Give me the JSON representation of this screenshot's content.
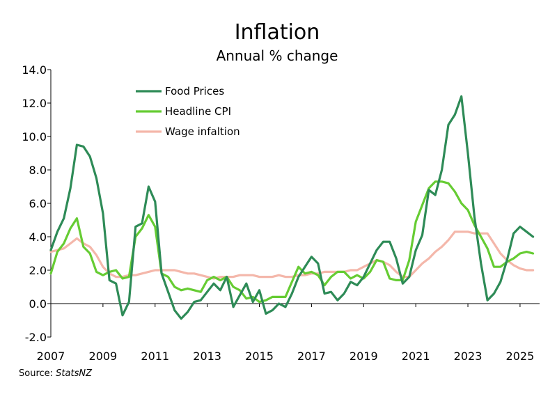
{
  "title": "Inflation",
  "subtitle": "Annual % change",
  "source": {
    "prefix": "Source: ",
    "name": "StatsNZ"
  },
  "colors": {
    "food": "#2e8b57",
    "cpi": "#66cc33",
    "wage": "#f4b7aa",
    "axis": "#000000"
  },
  "chart_data": {
    "type": "line",
    "title": "Inflation",
    "subtitle": "Annual % change",
    "xlabel": "",
    "ylabel": "",
    "xlim": [
      2007.0,
      2025.75
    ],
    "ylim": [
      -2.0,
      14.0
    ],
    "yticks": [
      "-2.0",
      "0.0",
      "2.0",
      "4.0",
      "6.0",
      "8.0",
      "10.0",
      "12.0",
      "14.0"
    ],
    "xticks": [
      "2007",
      "2009",
      "2011",
      "2013",
      "2015",
      "2017",
      "2019",
      "2021",
      "2023",
      "2025"
    ],
    "grid": false,
    "legend_position": "top-left",
    "series": [
      {
        "name": "Food Prices",
        "color": "#2e8b57",
        "points": [
          [
            2007.0,
            3.2
          ],
          [
            2007.25,
            4.3
          ],
          [
            2007.5,
            5.1
          ],
          [
            2007.75,
            6.9
          ],
          [
            2008.0,
            9.5
          ],
          [
            2008.25,
            9.4
          ],
          [
            2008.5,
            8.8
          ],
          [
            2008.75,
            7.5
          ],
          [
            2009.0,
            5.4
          ],
          [
            2009.25,
            1.4
          ],
          [
            2009.5,
            1.2
          ],
          [
            2009.75,
            -0.7
          ],
          [
            2010.0,
            0.1
          ],
          [
            2010.25,
            4.6
          ],
          [
            2010.5,
            4.8
          ],
          [
            2010.75,
            7.0
          ],
          [
            2011.0,
            6.1
          ],
          [
            2011.25,
            1.8
          ],
          [
            2011.5,
            0.7
          ],
          [
            2011.75,
            -0.4
          ],
          [
            2012.0,
            -0.9
          ],
          [
            2012.25,
            -0.5
          ],
          [
            2012.5,
            0.1
          ],
          [
            2012.75,
            0.2
          ],
          [
            2013.0,
            0.7
          ],
          [
            2013.25,
            1.2
          ],
          [
            2013.5,
            0.8
          ],
          [
            2013.75,
            1.6
          ],
          [
            2014.0,
            -0.2
          ],
          [
            2014.25,
            0.5
          ],
          [
            2014.5,
            1.2
          ],
          [
            2014.75,
            0.1
          ],
          [
            2015.0,
            0.8
          ],
          [
            2015.25,
            -0.6
          ],
          [
            2015.5,
            -0.4
          ],
          [
            2015.75,
            0.0
          ],
          [
            2016.0,
            -0.2
          ],
          [
            2016.25,
            0.6
          ],
          [
            2016.5,
            1.6
          ],
          [
            2016.75,
            2.2
          ],
          [
            2017.0,
            2.8
          ],
          [
            2017.25,
            2.4
          ],
          [
            2017.5,
            0.6
          ],
          [
            2017.75,
            0.7
          ],
          [
            2018.0,
            0.2
          ],
          [
            2018.25,
            0.6
          ],
          [
            2018.5,
            1.3
          ],
          [
            2018.75,
            1.1
          ],
          [
            2019.0,
            1.6
          ],
          [
            2019.25,
            2.4
          ],
          [
            2019.5,
            3.2
          ],
          [
            2019.75,
            3.7
          ],
          [
            2020.0,
            3.7
          ],
          [
            2020.25,
            2.7
          ],
          [
            2020.5,
            1.2
          ],
          [
            2020.75,
            1.6
          ],
          [
            2021.0,
            3.2
          ],
          [
            2021.25,
            4.1
          ],
          [
            2021.5,
            6.8
          ],
          [
            2021.75,
            6.5
          ],
          [
            2022.0,
            8.0
          ],
          [
            2022.25,
            10.7
          ],
          [
            2022.5,
            11.3
          ],
          [
            2022.75,
            12.4
          ],
          [
            2023.0,
            9.0
          ],
          [
            2023.25,
            5.2
          ],
          [
            2023.5,
            2.4
          ],
          [
            2023.75,
            0.2
          ],
          [
            2024.0,
            0.6
          ],
          [
            2024.25,
            1.3
          ],
          [
            2024.5,
            2.6
          ],
          [
            2024.75,
            4.2
          ],
          [
            2025.0,
            4.6
          ],
          [
            2025.25,
            4.3
          ],
          [
            2025.5,
            4.0
          ]
        ]
      },
      {
        "name": "Headline CPI",
        "color": "#66cc33",
        "points": [
          [
            2007.0,
            1.8
          ],
          [
            2007.25,
            3.1
          ],
          [
            2007.5,
            3.6
          ],
          [
            2007.75,
            4.5
          ],
          [
            2008.0,
            5.1
          ],
          [
            2008.25,
            3.4
          ],
          [
            2008.5,
            3.0
          ],
          [
            2008.75,
            1.9
          ],
          [
            2009.0,
            1.7
          ],
          [
            2009.25,
            1.9
          ],
          [
            2009.5,
            2.0
          ],
          [
            2009.75,
            1.5
          ],
          [
            2010.0,
            1.6
          ],
          [
            2010.25,
            4.0
          ],
          [
            2010.5,
            4.5
          ],
          [
            2010.75,
            5.3
          ],
          [
            2011.0,
            4.6
          ],
          [
            2011.25,
            1.8
          ],
          [
            2011.5,
            1.6
          ],
          [
            2011.75,
            1.0
          ],
          [
            2012.0,
            0.8
          ],
          [
            2012.25,
            0.9
          ],
          [
            2012.5,
            0.8
          ],
          [
            2012.75,
            0.7
          ],
          [
            2013.0,
            1.4
          ],
          [
            2013.25,
            1.6
          ],
          [
            2013.5,
            1.4
          ],
          [
            2013.75,
            1.6
          ],
          [
            2014.0,
            1.0
          ],
          [
            2014.25,
            0.8
          ],
          [
            2014.5,
            0.3
          ],
          [
            2014.75,
            0.4
          ],
          [
            2015.0,
            0.1
          ],
          [
            2015.25,
            0.2
          ],
          [
            2015.5,
            0.4
          ],
          [
            2015.75,
            0.4
          ],
          [
            2016.0,
            0.4
          ],
          [
            2016.25,
            1.3
          ],
          [
            2016.5,
            2.2
          ],
          [
            2016.75,
            1.8
          ],
          [
            2017.0,
            1.9
          ],
          [
            2017.25,
            1.7
          ],
          [
            2017.5,
            1.1
          ],
          [
            2017.75,
            1.6
          ],
          [
            2018.0,
            1.9
          ],
          [
            2018.25,
            1.9
          ],
          [
            2018.5,
            1.5
          ],
          [
            2018.75,
            1.7
          ],
          [
            2019.0,
            1.5
          ],
          [
            2019.25,
            1.9
          ],
          [
            2019.5,
            2.6
          ],
          [
            2019.75,
            2.5
          ],
          [
            2020.0,
            1.5
          ],
          [
            2020.25,
            1.4
          ],
          [
            2020.5,
            1.4
          ],
          [
            2020.75,
            2.6
          ],
          [
            2021.0,
            4.9
          ],
          [
            2021.25,
            5.9
          ],
          [
            2021.5,
            6.9
          ],
          [
            2021.75,
            7.3
          ],
          [
            2022.0,
            7.3
          ],
          [
            2022.25,
            7.2
          ],
          [
            2022.5,
            6.7
          ],
          [
            2022.75,
            6.0
          ],
          [
            2023.0,
            5.6
          ],
          [
            2023.25,
            4.7
          ],
          [
            2023.5,
            4.0
          ],
          [
            2023.75,
            3.3
          ],
          [
            2024.0,
            2.2
          ],
          [
            2024.25,
            2.2
          ],
          [
            2024.5,
            2.5
          ],
          [
            2024.75,
            2.7
          ],
          [
            2025.0,
            3.0
          ],
          [
            2025.25,
            3.1
          ],
          [
            2025.5,
            3.0
          ]
        ]
      },
      {
        "name": "Wage infaltion",
        "color": "#f4b7aa",
        "points": [
          [
            2007.0,
            3.1
          ],
          [
            2007.25,
            3.2
          ],
          [
            2007.5,
            3.3
          ],
          [
            2007.75,
            3.6
          ],
          [
            2008.0,
            3.9
          ],
          [
            2008.25,
            3.6
          ],
          [
            2008.5,
            3.4
          ],
          [
            2008.75,
            2.9
          ],
          [
            2009.0,
            2.2
          ],
          [
            2009.25,
            1.8
          ],
          [
            2009.5,
            1.6
          ],
          [
            2009.75,
            1.6
          ],
          [
            2010.0,
            1.7
          ],
          [
            2010.25,
            1.7
          ],
          [
            2010.5,
            1.8
          ],
          [
            2010.75,
            1.9
          ],
          [
            2011.0,
            2.0
          ],
          [
            2011.25,
            2.0
          ],
          [
            2011.5,
            2.0
          ],
          [
            2011.75,
            2.0
          ],
          [
            2012.0,
            1.9
          ],
          [
            2012.25,
            1.8
          ],
          [
            2012.5,
            1.8
          ],
          [
            2012.75,
            1.7
          ],
          [
            2013.0,
            1.6
          ],
          [
            2013.25,
            1.5
          ],
          [
            2013.5,
            1.6
          ],
          [
            2013.75,
            1.6
          ],
          [
            2014.0,
            1.6
          ],
          [
            2014.25,
            1.7
          ],
          [
            2014.5,
            1.7
          ],
          [
            2014.75,
            1.7
          ],
          [
            2015.0,
            1.6
          ],
          [
            2015.25,
            1.6
          ],
          [
            2015.5,
            1.6
          ],
          [
            2015.75,
            1.7
          ],
          [
            2016.0,
            1.6
          ],
          [
            2016.25,
            1.6
          ],
          [
            2016.5,
            1.7
          ],
          [
            2016.75,
            1.7
          ],
          [
            2017.0,
            1.8
          ],
          [
            2017.25,
            1.8
          ],
          [
            2017.5,
            1.9
          ],
          [
            2017.75,
            1.9
          ],
          [
            2018.0,
            1.9
          ],
          [
            2018.25,
            1.9
          ],
          [
            2018.5,
            2.0
          ],
          [
            2018.75,
            2.0
          ],
          [
            2019.0,
            2.2
          ],
          [
            2019.25,
            2.4
          ],
          [
            2019.5,
            2.6
          ],
          [
            2019.75,
            2.5
          ],
          [
            2020.0,
            2.3
          ],
          [
            2020.25,
            1.9
          ],
          [
            2020.5,
            1.6
          ],
          [
            2020.75,
            1.6
          ],
          [
            2021.0,
            2.0
          ],
          [
            2021.25,
            2.4
          ],
          [
            2021.5,
            2.7
          ],
          [
            2021.75,
            3.1
          ],
          [
            2022.0,
            3.4
          ],
          [
            2022.25,
            3.8
          ],
          [
            2022.5,
            4.3
          ],
          [
            2022.75,
            4.3
          ],
          [
            2023.0,
            4.3
          ],
          [
            2023.25,
            4.2
          ],
          [
            2023.5,
            4.2
          ],
          [
            2023.75,
            4.2
          ],
          [
            2024.0,
            3.6
          ],
          [
            2024.25,
            3.0
          ],
          [
            2024.5,
            2.6
          ],
          [
            2024.75,
            2.3
          ],
          [
            2025.0,
            2.1
          ],
          [
            2025.25,
            2.0
          ],
          [
            2025.5,
            2.0
          ]
        ]
      }
    ]
  }
}
